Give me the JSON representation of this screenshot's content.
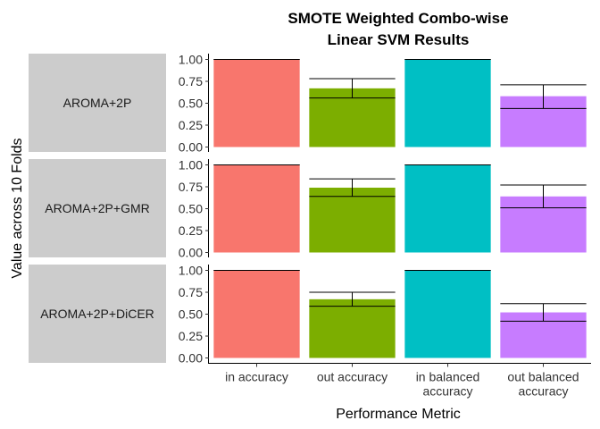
{
  "chart_data": {
    "type": "bar",
    "title_lines": [
      "SMOTE Weighted Combo-wise",
      "Linear SVM Results"
    ],
    "xlabel": "Performance Metric",
    "ylabel": "Value across 10 Folds",
    "categories": [
      "in accuracy",
      "out accuracy",
      "in balanced accuracy",
      "out balanced accuracy"
    ],
    "category_label_lines": [
      [
        "in accuracy"
      ],
      [
        "out accuracy"
      ],
      [
        "in balanced",
        "accuracy"
      ],
      [
        "out balanced",
        "accuracy"
      ]
    ],
    "colors": [
      "#F8766D",
      "#7CAE00",
      "#00BFC4",
      "#C77CFF"
    ],
    "ylim": [
      0,
      1.0
    ],
    "yticks": [
      "0.00",
      "0.25",
      "0.50",
      "0.75",
      "1.00"
    ],
    "grid": false,
    "legend": "none",
    "panels": [
      {
        "label": "AROMA+2P",
        "values": [
          1.0,
          0.67,
          1.0,
          0.58
        ],
        "error_low": [
          1.0,
          0.56,
          1.0,
          0.44
        ],
        "error_high": [
          1.0,
          0.78,
          1.0,
          0.71
        ]
      },
      {
        "label": "AROMA+2P+GMR",
        "values": [
          1.0,
          0.74,
          1.0,
          0.64
        ],
        "error_low": [
          1.0,
          0.64,
          1.0,
          0.51
        ],
        "error_high": [
          1.0,
          0.84,
          1.0,
          0.77
        ]
      },
      {
        "label": "AROMA+2P+DiCER",
        "values": [
          1.0,
          0.67,
          1.0,
          0.52
        ],
        "error_low": [
          1.0,
          0.59,
          1.0,
          0.42
        ],
        "error_high": [
          1.0,
          0.75,
          1.0,
          0.62
        ]
      }
    ]
  }
}
